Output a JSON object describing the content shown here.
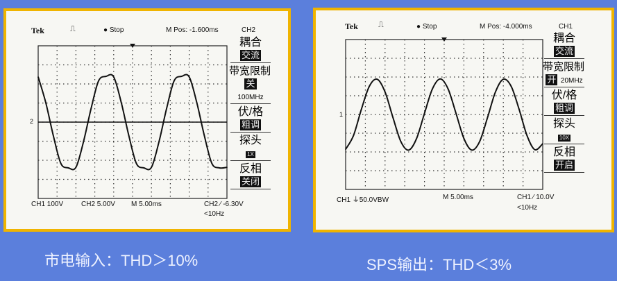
{
  "colors": {
    "background": "#5b7fdc",
    "frame": "#f0b400",
    "screen": "#f7f7f3",
    "trace": "#111111"
  },
  "scopes": [
    {
      "brand": "Tek",
      "trigger_icon": "pulse-icon",
      "status": "Stop",
      "m_pos": "M Pos: -1.600ms",
      "channel": "CH2",
      "menu": {
        "coupling": "耦合",
        "coupling_val": "交流",
        "bw_limit": "带宽限制",
        "bw_state": "关",
        "bw_val": "100MHz",
        "volts_div": "伏/格",
        "volts_div_val": "粗调",
        "probe": "探头",
        "probe_val": "1X",
        "invert": "反相",
        "invert_val": "关闭"
      },
      "footer": {
        "ch1": "CH1  100V",
        "ch2": "CH2  5.00V",
        "timebase": "M 5.00ms",
        "trigger": "CH2 ⁄ -6.30V",
        "freq": "<10Hz"
      },
      "ground_marker": "2"
    },
    {
      "brand": "Tek",
      "trigger_icon": "pulse-icon",
      "status": "Stop",
      "m_pos": "M Pos: -4.000ms",
      "channel": "CH1",
      "menu": {
        "coupling": "耦合",
        "coupling_val": "交流",
        "bw_limit": "带宽限制",
        "bw_state": "开",
        "bw_val": "20MHz",
        "volts_div": "伏/格",
        "volts_div_val": "粗调",
        "probe": "探头",
        "probe_val": "10X",
        "invert": "反相",
        "invert_val": "开启"
      },
      "footer": {
        "ch1": "CH1 ⏚50.0VBW",
        "timebase": "M 5.00ms",
        "trigger": "CH1 ⁄ 10.0V",
        "freq": "<10Hz"
      },
      "ground_marker": "1"
    }
  ],
  "captions": {
    "left": "市电输入：THD＞10%",
    "right": "SPS输出：THD＜3%"
  },
  "chart_data": [
    {
      "type": "line",
      "xlabel": "",
      "ylabel": "",
      "x_unit": "ms",
      "y_unit": "V",
      "time_per_div_ms": 5,
      "volts_per_div": 100,
      "xlim": [
        0,
        50
      ],
      "ylim": [
        -400,
        400
      ],
      "grid": true,
      "divisions": [
        10,
        8
      ],
      "x": [
        0,
        2,
        4,
        6,
        8,
        10,
        12,
        14,
        16,
        18,
        20,
        22,
        24,
        26,
        28,
        30,
        32,
        34,
        36,
        38,
        40,
        42,
        44,
        46,
        48,
        50
      ],
      "y": [
        237,
        103,
        -70,
        -216,
        -240,
        -237,
        -103,
        70,
        216,
        240,
        237,
        103,
        -70,
        -216,
        -240,
        -237,
        -103,
        70,
        216,
        240,
        237,
        103,
        -70,
        -216,
        -240,
        -237
      ]
    },
    {
      "type": "line",
      "xlabel": "",
      "ylabel": "",
      "x_unit": "ms",
      "y_unit": "V",
      "time_per_div_ms": 5,
      "volts_per_div": 50,
      "xlim": [
        0,
        50
      ],
      "ylim": [
        -200,
        200
      ],
      "grid": true,
      "divisions": [
        10,
        8
      ],
      "x": [
        0,
        2,
        4,
        6,
        8,
        10,
        12,
        14,
        16,
        18,
        20,
        22,
        24,
        26,
        28,
        30,
        32,
        34,
        36,
        38,
        40,
        42,
        44,
        46,
        48,
        50
      ],
      "y": [
        -93,
        -56,
        14,
        75,
        94,
        60,
        -8,
        -72,
        -95,
        -64,
        3,
        68,
        95,
        68,
        3,
        -64,
        -95,
        -72,
        -8,
        60,
        94,
        75,
        14,
        -56,
        -94,
        -78
      ]
    }
  ]
}
